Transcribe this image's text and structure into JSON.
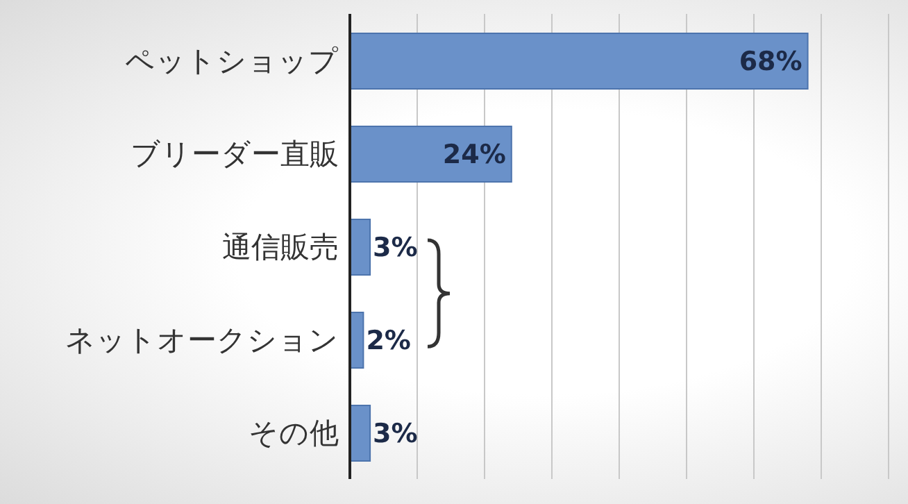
{
  "chart_data": {
    "type": "bar",
    "orientation": "horizontal",
    "categories": [
      "ペットショップ",
      "ブリーダー直販",
      "通信販売",
      "ネットオークション",
      "その他"
    ],
    "values": [
      68,
      24,
      3,
      2,
      3
    ],
    "value_labels": [
      "68%",
      "24%",
      "3%",
      "2%",
      "3%"
    ],
    "color": "#6a91c9",
    "xlim": [
      0,
      80
    ],
    "xticks": [
      {
        "value": 0,
        "label": null
      },
      {
        "value": 10,
        "label": null
      },
      {
        "value": 20,
        "label": null
      },
      {
        "value": 30,
        "label": null
      },
      {
        "value": 40,
        "label": null
      },
      {
        "value": 50,
        "label": null
      },
      {
        "value": 60,
        "label": null
      },
      {
        "value": 70,
        "label": null
      },
      {
        "value": 80,
        "label": null
      }
    ],
    "tick_labels": "y",
    "grid": "x",
    "legend": false
  }
}
